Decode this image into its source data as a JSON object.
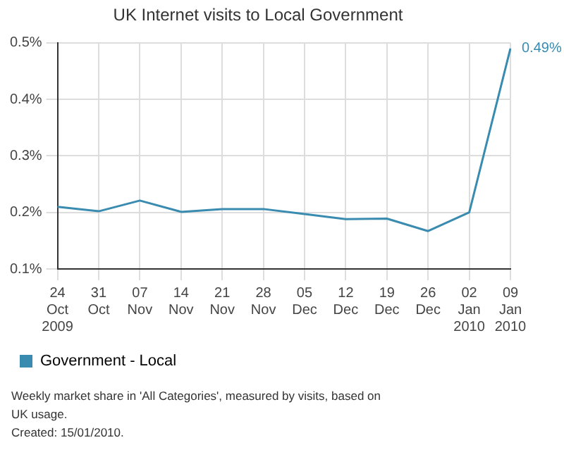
{
  "chart_data": {
    "type": "line",
    "title": "UK Internet visits to Local Government",
    "categories": [
      "24 Oct 2009",
      "31 Oct",
      "07 Nov",
      "14 Nov",
      "21 Nov",
      "28 Nov",
      "05 Dec",
      "12 Dec",
      "19 Dec",
      "26 Dec",
      "02 Jan 2010",
      "09 Jan 2010"
    ],
    "series": [
      {
        "name": "Government - Local",
        "color": "#3a8bb0",
        "values": [
          0.21,
          0.202,
          0.221,
          0.201,
          0.206,
          0.206,
          0.197,
          0.188,
          0.189,
          0.167,
          0.2,
          0.49
        ],
        "value_labels": [
          null,
          null,
          null,
          null,
          null,
          null,
          null,
          null,
          null,
          null,
          null,
          "0.49%"
        ]
      }
    ],
    "ylim": [
      0.1,
      0.5
    ],
    "yticks": [
      {
        "value": 0.1,
        "label": "0.1%"
      },
      {
        "value": 0.2,
        "label": "0.2%"
      },
      {
        "value": 0.3,
        "label": "0.3%"
      },
      {
        "value": 0.4,
        "label": "0.4%"
      },
      {
        "value": 0.5,
        "label": "0.5%"
      }
    ],
    "grid": true,
    "legend": "bottom left",
    "marker": "none",
    "line_style": "solid",
    "annotations": [
      "Weekly market share in 'All Categories', measured by visits, based on UK usage.",
      "Created: 15/01/2010."
    ]
  }
}
